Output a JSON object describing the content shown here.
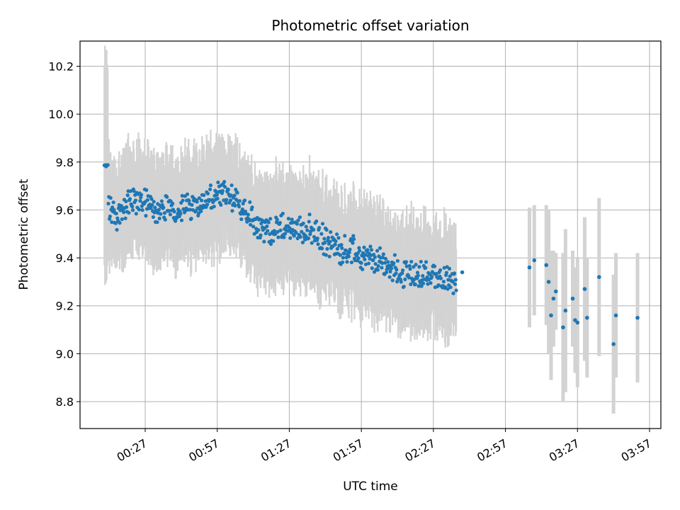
{
  "chart_data": {
    "type": "scatter",
    "title": "Photometric offset variation",
    "xlabel": "UTC time",
    "ylabel": "Photometric offset",
    "grid": true,
    "xlim": [
      "00:00",
      "04:00"
    ],
    "ylim": [
      8.68,
      10.31
    ],
    "x_ticks": [
      "00:27",
      "00:57",
      "01:27",
      "01:57",
      "02:27",
      "02:57",
      "03:27",
      "03:57"
    ],
    "y_ticks": [
      8.8,
      9.0,
      9.2,
      9.4,
      9.6,
      9.8,
      10.0,
      10.2
    ],
    "colors": {
      "points": "#1f77b4",
      "error_bars": "#d3d3d3",
      "grid": "#b0b0b0"
    },
    "dense_series": {
      "start": "00:10",
      "end": "02:39",
      "trend": [
        [
          "00:10",
          9.79
        ],
        [
          "00:12",
          9.6
        ],
        [
          "00:15",
          9.57
        ],
        [
          "00:20",
          9.63
        ],
        [
          "00:25",
          9.64
        ],
        [
          "00:30",
          9.6
        ],
        [
          "00:40",
          9.6
        ],
        [
          "00:50",
          9.63
        ],
        [
          "01:00",
          9.66
        ],
        [
          "01:10",
          9.6
        ],
        [
          "01:15",
          9.52
        ],
        [
          "01:25",
          9.52
        ],
        [
          "01:35",
          9.52
        ],
        [
          "01:45",
          9.45
        ],
        [
          "01:55",
          9.42
        ],
        [
          "02:05",
          9.38
        ],
        [
          "02:15",
          9.33
        ],
        [
          "02:25",
          9.33
        ],
        [
          "02:30",
          9.32
        ],
        [
          "02:36",
          9.29
        ]
      ],
      "error_halfwidth": 0.2
    },
    "sparse_points": [
      {
        "x": "02:39",
        "y": 9.34,
        "err": 0
      },
      {
        "x": "03:07",
        "y": 9.36,
        "err": 0.25
      },
      {
        "x": "03:09",
        "y": 9.39,
        "err": 0.23
      },
      {
        "x": "03:14",
        "y": 9.37,
        "err": 0.25
      },
      {
        "x": "03:15",
        "y": 9.3,
        "err": 0.3
      },
      {
        "x": "03:16",
        "y": 9.16,
        "err": 0.27
      },
      {
        "x": "03:17",
        "y": 9.23,
        "err": 0.2
      },
      {
        "x": "03:18",
        "y": 9.26,
        "err": 0.16
      },
      {
        "x": "03:21",
        "y": 9.11,
        "err": 0.31
      },
      {
        "x": "03:22",
        "y": 9.18,
        "err": 0.34
      },
      {
        "x": "03:25",
        "y": 9.23,
        "err": 0.2
      },
      {
        "x": "03:26",
        "y": 9.14,
        "err": 0.22
      },
      {
        "x": "03:27",
        "y": 9.13,
        "err": 0.27
      },
      {
        "x": "03:30",
        "y": 9.27,
        "err": 0.3
      },
      {
        "x": "03:31",
        "y": 9.15,
        "err": 0.25
      },
      {
        "x": "03:36",
        "y": 9.32,
        "err": 0.33
      },
      {
        "x": "03:42",
        "y": 9.04,
        "err": 0.29
      },
      {
        "x": "03:43",
        "y": 9.16,
        "err": 0.26
      },
      {
        "x": "03:52",
        "y": 9.15,
        "err": 0.27
      }
    ]
  }
}
